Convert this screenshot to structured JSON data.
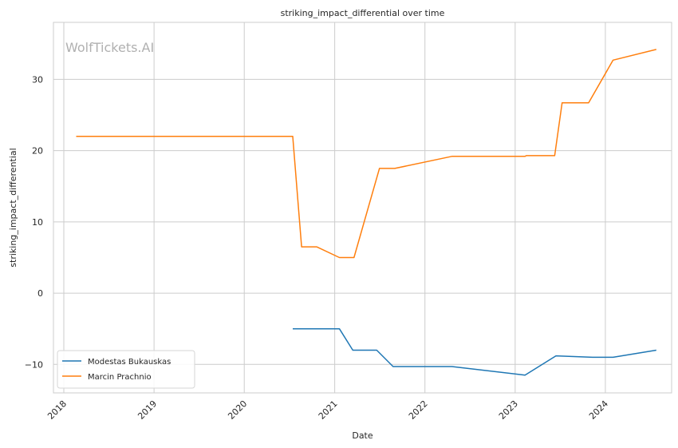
{
  "chart_data": {
    "type": "line",
    "title": "striking_impact_differential over time",
    "xlabel": "Date",
    "ylabel": "striking_impact_differential",
    "watermark": "WolfTickets.AI",
    "xlim": [
      "2017-11-20",
      "2024-09-25"
    ],
    "ylim": [
      -14,
      38
    ],
    "x_ticks": [
      "2018-01-01",
      "2019-01-01",
      "2020-01-01",
      "2021-01-01",
      "2022-01-01",
      "2023-01-01",
      "2024-01-01"
    ],
    "x_tick_labels": [
      "2018",
      "2019",
      "2020",
      "2021",
      "2022",
      "2023",
      "2024"
    ],
    "y_ticks": [
      -10,
      0,
      10,
      20,
      30
    ],
    "y_tick_labels": [
      "−10",
      "0",
      "10",
      "20",
      "30"
    ],
    "grid": true,
    "legend_position": "lower-left",
    "series": [
      {
        "name": "Modestas Bukauskas",
        "color": "#1f77b4",
        "x": [
          "2020-07-15",
          "2021-01-20",
          "2021-03-15",
          "2021-06-20",
          "2021-08-25",
          "2022-04-20",
          "2023-02-10",
          "2023-06-15",
          "2023-11-10",
          "2024-02-01",
          "2024-07-25"
        ],
        "y": [
          -5,
          -5,
          -8,
          -8,
          -10.3,
          -10.3,
          -11.5,
          -8.8,
          -9,
          -9,
          -8
        ]
      },
      {
        "name": "Marcin Prachnio",
        "color": "#ff7f0e",
        "x": [
          "2018-02-20",
          "2020-07-15",
          "2020-08-20",
          "2020-10-20",
          "2021-01-20",
          "2021-03-20",
          "2021-07-01",
          "2021-09-01",
          "2022-04-20",
          "2023-02-10",
          "2023-02-15",
          "2023-06-10",
          "2023-07-10",
          "2023-10-25",
          "2024-02-01",
          "2024-07-25"
        ],
        "y": [
          22,
          22,
          6.5,
          6.5,
          5,
          5,
          17.5,
          17.5,
          19.2,
          19.2,
          19.3,
          19.3,
          26.7,
          26.7,
          32.7,
          34.2
        ]
      }
    ]
  }
}
